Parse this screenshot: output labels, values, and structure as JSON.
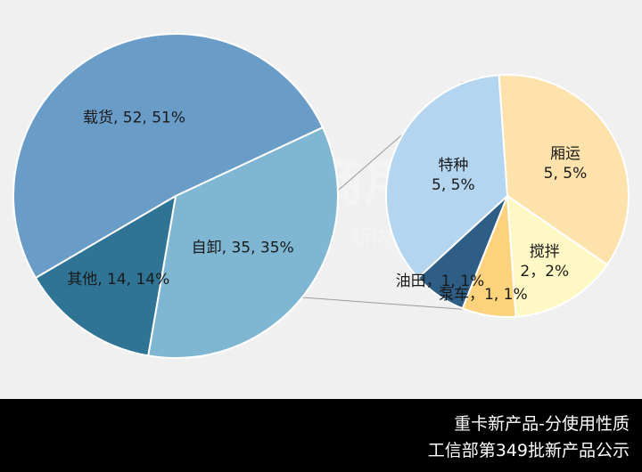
{
  "chart_data": {
    "type": "pie",
    "main": {
      "slices": [
        {
          "label": "自卸, 35, 35%",
          "value": 35,
          "color": "#7fb7d3"
        },
        {
          "label": "其他, 14, 14%",
          "value": 14,
          "color": "#2f7395"
        },
        {
          "label": "载货, 52, 51%",
          "value": 52,
          "color": "#6a9cc8"
        }
      ]
    },
    "sub": {
      "slices": [
        {
          "label_lines": [
            "厢运",
            "5, 5%"
          ],
          "value": 5,
          "color": "#fde2ab"
        },
        {
          "label_lines": [
            "搅拌",
            "2，2%"
          ],
          "value": 2,
          "color": "#fef8c5"
        },
        {
          "label_lines": [
            "泵车，1, 1%"
          ],
          "value": 1,
          "color": "#fdd27d"
        },
        {
          "label_lines": [
            "油田，1, 1%"
          ],
          "value": 1,
          "color": "#2e5d85"
        },
        {
          "label_lines": [
            "特种",
            "5, 5%"
          ],
          "value": 5,
          "color": "#b3d5f0"
        }
      ]
    },
    "watermark": {
      "brand": "提加商用车",
      "slogan": "专注自媒体 · 新内容传播"
    }
  },
  "footer": {
    "line1": "重卡新产品-分使用性质",
    "line2": "工信部第349批新产品公示"
  }
}
